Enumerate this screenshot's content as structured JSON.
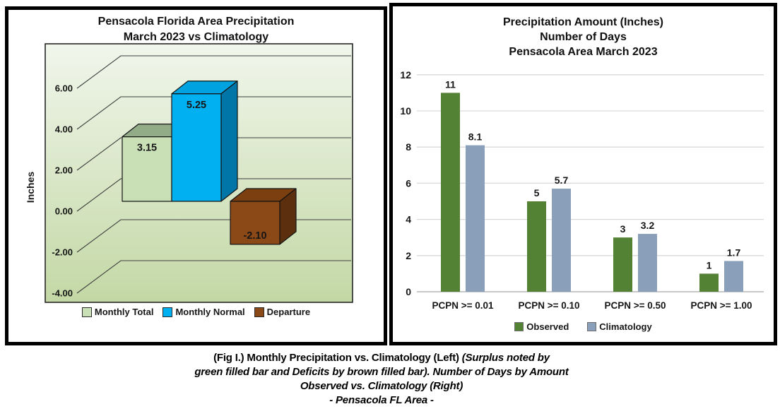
{
  "page": {
    "background": "#ffffff"
  },
  "caption": {
    "line1_regular": "(Fig I.) Monthly Precipitation vs. Climatology (Left)",
    "line1_italic": "(Surplus noted by",
    "line2": "green filled bar and Deficits by brown filled bar). Number of Days by Amount",
    "line3": "Observed vs. Climatology (Right)",
    "line4": "- Pensacola FL Area -"
  },
  "chart_data": [
    {
      "id": "monthly-precip-3d",
      "type": "bar",
      "style": "3d",
      "title_lines": [
        "Pensacola Florida Area Precipitation",
        "March 2023 vs Climatology"
      ],
      "ylabel": "Inches",
      "categories": [
        "Monthly Total",
        "Monthly Normal",
        "Departure"
      ],
      "values": [
        3.15,
        5.25,
        -2.1
      ],
      "value_labels": [
        "3.15",
        "5.25",
        "-2.10"
      ],
      "yticks": [
        6,
        4,
        2,
        0,
        -2,
        -4
      ],
      "ytick_labels": [
        "6.00",
        "4.00",
        "2.00",
        "0.00",
        "-2.00",
        "-4.00"
      ],
      "ylim": [
        -4.5,
        7
      ],
      "grid": true,
      "legend_position": "bottom",
      "plot_bg_gradient": [
        "#f1f6ec",
        "#c3d8a5"
      ],
      "gridline_color": "#3f3f3f",
      "series_colors": [
        {
          "front": "#c9dfb6",
          "top": "#93ac88",
          "side": "#a8c096"
        },
        {
          "front": "#00b0f0",
          "top": "#00a3e0",
          "side": "#0076a8"
        },
        {
          "front": "#8a4917",
          "top": "#7c3f10",
          "side": "#5c300e"
        }
      ]
    },
    {
      "id": "days-by-amount",
      "type": "bar",
      "title_lines": [
        "Precipitation Amount (Inches)",
        "Number of Days",
        "Pensacola Area March 2023"
      ],
      "categories": [
        "PCPN >= 0.01",
        "PCPN >= 0.10",
        "PCPN >= 0.50",
        "PCPN >= 1.00"
      ],
      "series": [
        {
          "name": "Observed",
          "values": [
            11,
            5,
            3,
            1
          ],
          "value_labels": [
            "11",
            "5",
            "3",
            "1"
          ],
          "color": "#548235",
          "label_color": "#548235"
        },
        {
          "name": "Climatology",
          "values": [
            8.1,
            5.7,
            3.2,
            1.7
          ],
          "value_labels": [
            "8.1",
            "5.7",
            "3.2",
            "1.7"
          ],
          "color": "#8a9fba",
          "label_color": "#2e75b6"
        }
      ],
      "yticks": [
        0,
        2,
        4,
        6,
        8,
        10,
        12
      ],
      "ylim": [
        0,
        12
      ],
      "grid": true,
      "gridline_color": "#d9d9d9",
      "axis_line_color": "#a6a6a6",
      "legend_position": "bottom"
    }
  ]
}
